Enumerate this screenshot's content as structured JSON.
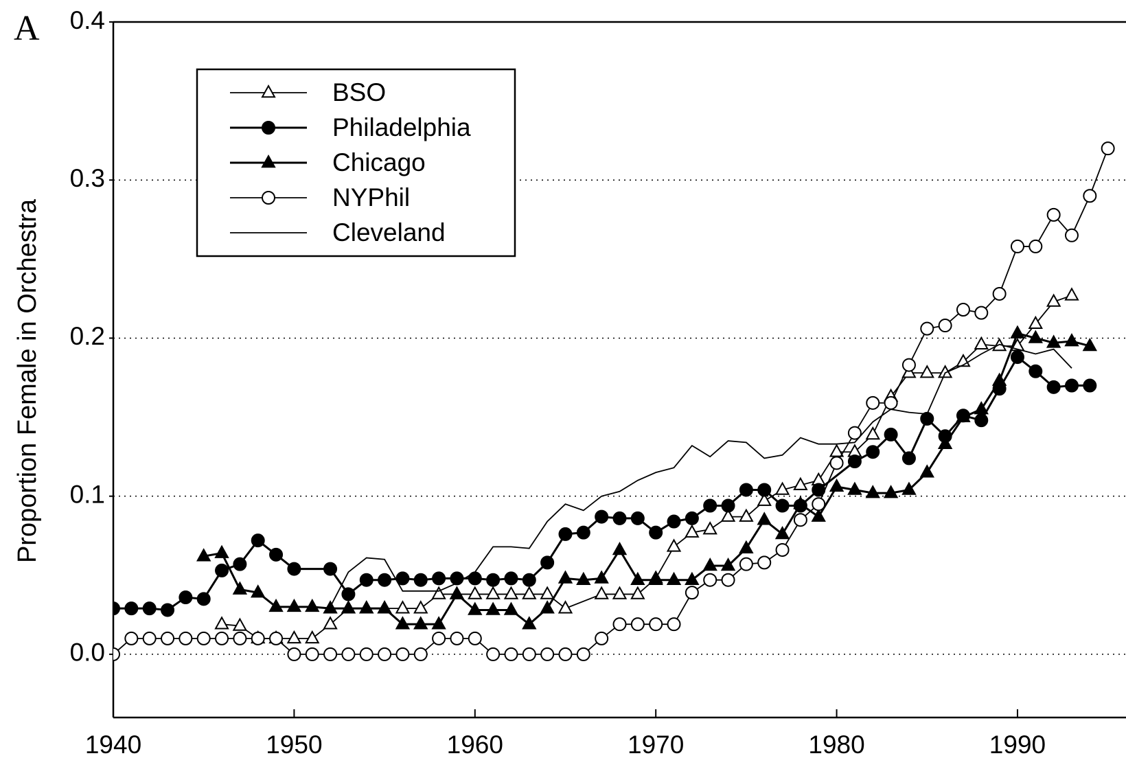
{
  "chart_data": {
    "type": "line",
    "panel_label": "A",
    "y_label": "Proportion Female in Orchestra",
    "xlim": [
      1940,
      1996
    ],
    "xticks": [
      1940,
      1950,
      1960,
      1970,
      1980,
      1990
    ],
    "ylim": [
      -0.04,
      0.4
    ],
    "yticks": [
      {
        "value": 0,
        "label": "0.0"
      },
      0.1,
      0.2,
      0.3,
      0.4
    ],
    "grid": true,
    "legend": "upper left",
    "series": [
      {
        "name": "BSO",
        "color": "#000000",
        "marker": "open-triangle",
        "x": [
          1946,
          1947,
          1948,
          1949,
          1950,
          1951,
          1952,
          1953,
          1954,
          1955,
          1956,
          1957,
          1958,
          1959,
          1960,
          1961,
          1962,
          1963,
          1964,
          1965,
          1967,
          1968,
          1969,
          1970,
          1971,
          1972,
          1973,
          1974,
          1975,
          1976,
          1977,
          1978,
          1979,
          1980,
          1981,
          1982,
          1983,
          1984,
          1985,
          1986,
          1987,
          1988,
          1989,
          1990,
          1991,
          1992,
          1993
        ],
        "values": [
          0.019,
          0.018,
          0.01,
          0.01,
          0.01,
          0.01,
          0.019,
          0.029,
          0.029,
          0.029,
          0.029,
          0.029,
          0.038,
          0.038,
          0.038,
          0.038,
          0.038,
          0.038,
          0.038,
          0.029,
          0.038,
          0.038,
          0.038,
          0.048,
          0.068,
          0.077,
          0.079,
          0.087,
          0.087,
          0.097,
          0.104,
          0.107,
          0.11,
          0.128,
          0.128,
          0.139,
          0.163,
          0.178,
          0.178,
          0.178,
          0.185,
          0.196,
          0.195,
          0.195,
          0.209,
          0.223,
          0.227
        ]
      },
      {
        "name": "Philadelphia",
        "color": "#000000",
        "marker": "filled-circle",
        "x": [
          1940,
          1941,
          1942,
          1943,
          1944,
          1945,
          1946,
          1947,
          1948,
          1949,
          1950,
          1952,
          1953,
          1954,
          1955,
          1956,
          1957,
          1958,
          1959,
          1960,
          1961,
          1962,
          1963,
          1964,
          1965,
          1966,
          1967,
          1968,
          1969,
          1970,
          1971,
          1972,
          1973,
          1974,
          1975,
          1976,
          1977,
          1978,
          1979,
          1981,
          1982,
          1983,
          1984,
          1985,
          1986,
          1987,
          1988,
          1989,
          1990,
          1991,
          1992,
          1993,
          1994
        ],
        "values": [
          0.029,
          0.029,
          0.029,
          0.028,
          0.036,
          0.035,
          0.053,
          0.057,
          0.072,
          0.063,
          0.054,
          0.054,
          0.038,
          0.047,
          0.047,
          0.048,
          0.047,
          0.048,
          0.048,
          0.048,
          0.047,
          0.048,
          0.047,
          0.058,
          0.076,
          0.077,
          0.087,
          0.086,
          0.086,
          0.077,
          0.084,
          0.086,
          0.094,
          0.094,
          0.104,
          0.104,
          0.094,
          0.094,
          0.104,
          0.122,
          0.128,
          0.139,
          0.124,
          0.149,
          0.138,
          0.151,
          0.148,
          0.168,
          0.188,
          0.179,
          0.169,
          0.17,
          0.17
        ]
      },
      {
        "name": "Chicago",
        "color": "#000000",
        "marker": "filled-triangle",
        "x": [
          1945,
          1946,
          1947,
          1948,
          1949,
          1950,
          1951,
          1952,
          1953,
          1954,
          1955,
          1956,
          1957,
          1958,
          1959,
          1960,
          1961,
          1962,
          1963,
          1964,
          1965,
          1966,
          1967,
          1968,
          1969,
          1970,
          1971,
          1972,
          1973,
          1974,
          1975,
          1976,
          1977,
          1978,
          1979,
          1980,
          1981,
          1982,
          1983,
          1984,
          1985,
          1986,
          1987,
          1988,
          1989,
          1990,
          1991,
          1992,
          1993,
          1994
        ],
        "values": [
          0.062,
          0.064,
          0.041,
          0.039,
          0.03,
          0.03,
          0.03,
          0.029,
          0.029,
          0.029,
          0.029,
          0.019,
          0.019,
          0.019,
          0.038,
          0.028,
          0.028,
          0.028,
          0.019,
          0.029,
          0.048,
          0.047,
          0.048,
          0.066,
          0.047,
          0.047,
          0.047,
          0.047,
          0.056,
          0.056,
          0.067,
          0.085,
          0.076,
          0.095,
          0.087,
          0.106,
          0.104,
          0.102,
          0.102,
          0.104,
          0.115,
          0.133,
          0.15,
          0.155,
          0.173,
          0.203,
          0.2,
          0.197,
          0.198,
          0.195
        ]
      },
      {
        "name": "NYPhil",
        "color": "#000000",
        "marker": "open-circle",
        "x": [
          1940,
          1941,
          1942,
          1943,
          1944,
          1945,
          1946,
          1947,
          1948,
          1949,
          1950,
          1951,
          1952,
          1953,
          1954,
          1955,
          1956,
          1957,
          1958,
          1959,
          1960,
          1961,
          1962,
          1963,
          1964,
          1965,
          1966,
          1967,
          1968,
          1969,
          1970,
          1971,
          1972,
          1973,
          1974,
          1975,
          1976,
          1977,
          1978,
          1979,
          1980,
          1981,
          1982,
          1983,
          1984,
          1985,
          1986,
          1987,
          1988,
          1989,
          1990,
          1991,
          1992,
          1993,
          1994,
          1995
        ],
        "values": [
          0,
          0.01,
          0.01,
          0.01,
          0.01,
          0.01,
          0.01,
          0.01,
          0.01,
          0.01,
          0,
          0,
          0,
          0,
          0,
          0,
          0,
          0,
          0.01,
          0.01,
          0.01,
          0,
          0,
          0,
          0,
          0,
          0,
          0.01,
          0.019,
          0.019,
          0.019,
          0.019,
          0.039,
          0.047,
          0.047,
          0.057,
          0.058,
          0.066,
          0.085,
          0.095,
          0.121,
          0.14,
          0.159,
          0.159,
          0.183,
          0.206,
          0.208,
          0.218,
          0.216,
          0.228,
          0.258,
          0.258,
          0.278,
          0.265,
          0.29,
          0.32
        ]
      },
      {
        "name": "Cleveland",
        "color": "#000000",
        "marker": "none",
        "x": [
          1952,
          1953,
          1954,
          1955,
          1956,
          1957,
          1958,
          1959,
          1960,
          1961,
          1962,
          1963,
          1964,
          1965,
          1966,
          1967,
          1968,
          1969,
          1970,
          1971,
          1972,
          1973,
          1974,
          1975,
          1976,
          1977,
          1978,
          1979,
          1980,
          1981,
          1982,
          1983,
          1984,
          1985,
          1986,
          1987,
          1988,
          1989,
          1990,
          1991,
          1992,
          1993
        ],
        "values": [
          0.03,
          0.052,
          0.061,
          0.06,
          0.04,
          0.04,
          0.04,
          0.045,
          0.052,
          0.068,
          0.068,
          0.067,
          0.084,
          0.095,
          0.091,
          0.1,
          0.103,
          0.11,
          0.115,
          0.118,
          0.132,
          0.125,
          0.135,
          0.134,
          0.124,
          0.126,
          0.137,
          0.133,
          0.133,
          0.134,
          0.147,
          0.155,
          0.153,
          0.152,
          0.178,
          0.183,
          0.19,
          0.196,
          0.193,
          0.19,
          0.193,
          0.181
        ]
      }
    ]
  }
}
